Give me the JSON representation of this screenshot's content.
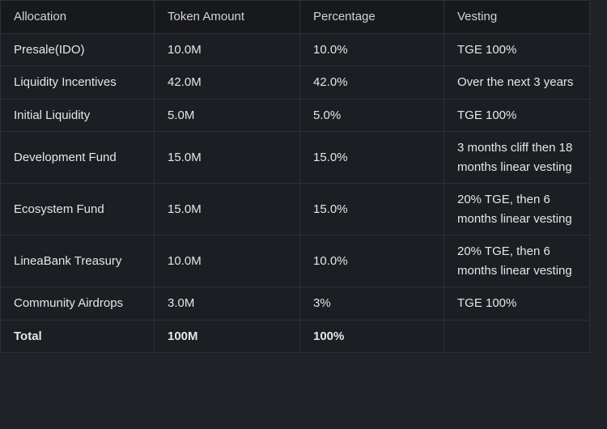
{
  "table": {
    "header": [
      "Allocation",
      "Token Amount",
      "Percentage",
      "Vesting"
    ],
    "rows": [
      [
        "Presale(IDO)",
        "10.0M",
        "10.0%",
        "TGE 100%"
      ],
      [
        "Liquidity Incentives",
        "42.0M",
        "42.0%",
        "Over the next 3 years"
      ],
      [
        "Initial Liquidity",
        "5.0M",
        "5.0%",
        "TGE 100%"
      ],
      [
        "Development Fund",
        "15.0M",
        "15.0%",
        "3 months cliff then 18 months linear vesting"
      ],
      [
        "Ecosystem Fund",
        "15.0M",
        "15.0%",
        "20% TGE, then 6 months linear vesting"
      ],
      [
        "LineaBank Treasury",
        "10.0M",
        "10.0%",
        "20% TGE, then 6 months linear vesting"
      ],
      [
        "Community Airdrops",
        "3.0M",
        "3%",
        "TGE 100%"
      ],
      [
        "Total",
        "100M",
        "100%"
      ]
    ]
  }
}
